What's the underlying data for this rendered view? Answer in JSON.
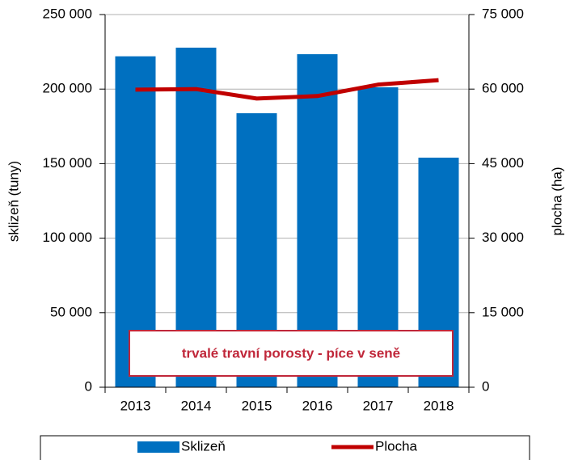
{
  "chart_data": {
    "type": "bar",
    "annotation": "trvalé travní porosty - píce v seně",
    "ylabel": "sklizeň (tuny)",
    "y2label": "plocha (ha)",
    "categories": [
      "2013",
      "2014",
      "2015",
      "2016",
      "2017",
      "2018"
    ],
    "series": [
      {
        "name": "Sklizeň",
        "color": "#0070c0",
        "type": "bar",
        "values": [
          222000,
          227800,
          183800,
          223400,
          201200,
          154000
        ]
      },
      {
        "name": "Plocha",
        "color": "#c00000",
        "type": "line",
        "axis": "y2",
        "values": [
          59900,
          60000,
          58100,
          58600,
          60900,
          61800
        ]
      }
    ],
    "ylim": [
      0,
      250000
    ],
    "yticks": [
      0,
      {
        "value": 50000,
        "label": "50 000"
      },
      {
        "value": 100000,
        "label": "100 000"
      },
      {
        "value": 150000,
        "label": "150 000"
      },
      {
        "value": 200000,
        "label": "200 000"
      },
      {
        "value": 250000,
        "label": "250 000"
      }
    ],
    "y2lim": [
      0,
      75000
    ],
    "y2ticks": [
      0,
      {
        "value": 15000,
        "label": "15 000"
      },
      {
        "value": 30000,
        "label": "30 000"
      },
      {
        "value": 45000,
        "label": "45 000"
      },
      {
        "value": 60000,
        "label": "60 000"
      },
      {
        "value": 75000,
        "label": "75 000"
      }
    ],
    "grid": true,
    "legend": "bottom"
  }
}
